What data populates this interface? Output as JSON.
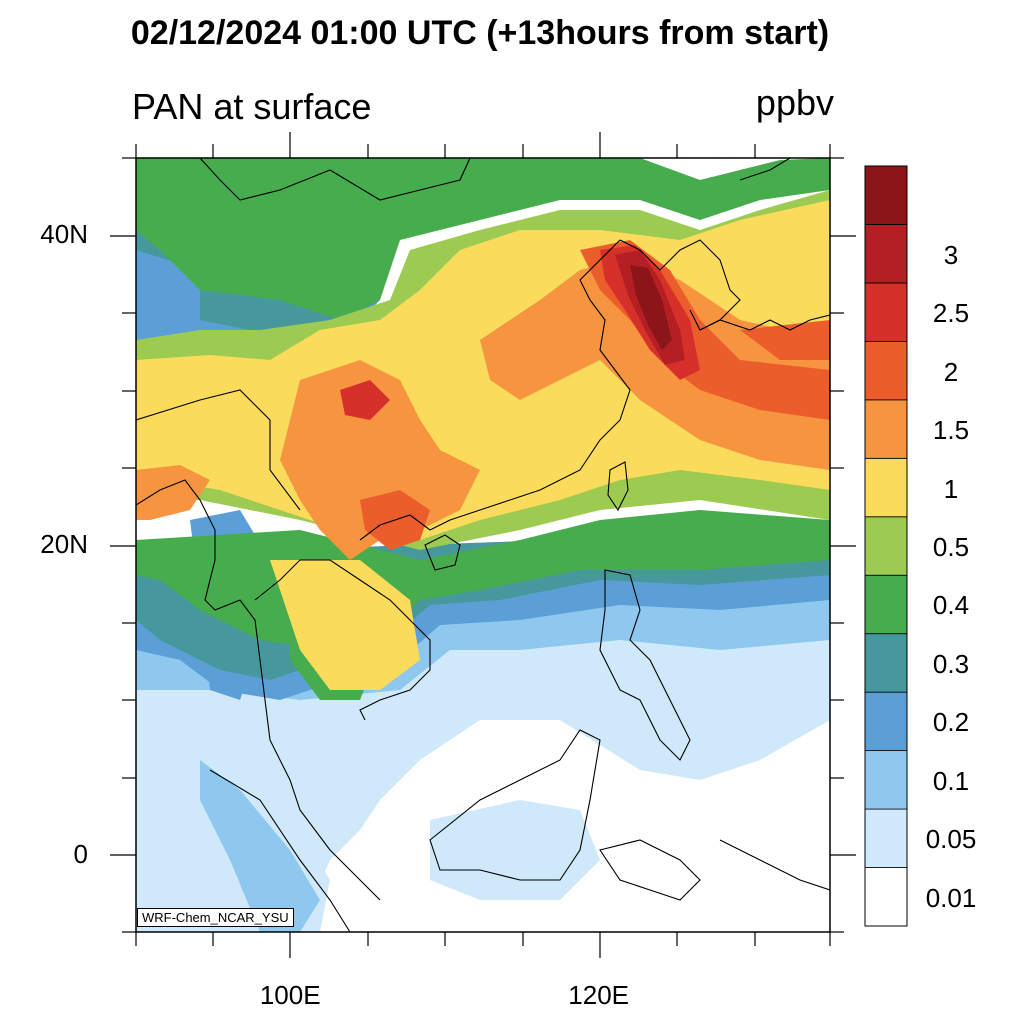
{
  "title": "02/12/2024 01:00 UTC (+13hours from start)",
  "subtitle": "PAN at surface",
  "units": "ppbv",
  "credit": "WRF-Chem_NCAR_YSU",
  "axes": {
    "lat_labels": [
      {
        "lat": 40,
        "label": "40N"
      },
      {
        "lat": 20,
        "label": "20N"
      },
      {
        "lat": 0,
        "label": "0"
      }
    ],
    "lon_labels": [
      {
        "lon": 100,
        "label": "100E"
      },
      {
        "lon": 120,
        "label": "120E"
      }
    ],
    "lon_range": [
      90,
      135
    ],
    "lat_range": [
      -5,
      45
    ]
  },
  "colorbar": {
    "levels": [
      "0.01",
      "0.05",
      "0.1",
      "0.2",
      "0.3",
      "0.4",
      "0.5",
      "1",
      "1.5",
      "2",
      "2.5",
      "3"
    ],
    "colors": [
      "#ffffff",
      "#cfe9fa",
      "#8ec8ef",
      "#5b9fd6",
      "#46989c",
      "#47ac4d",
      "#9dcb52",
      "#fbdb5c",
      "#f6943f",
      "#ec5d2c",
      "#d5302a",
      "#b31f22",
      "#8b1519"
    ]
  }
}
